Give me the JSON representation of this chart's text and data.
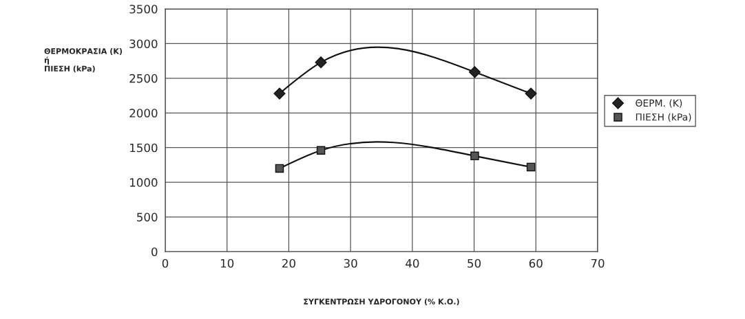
{
  "chart_data": {
    "type": "line",
    "xlabel": "ΣΥΓΚΕΝΤΡΩΣΗ ΥΔΡΟΓΟΝΟΥ (% Κ.Ο.)",
    "ylabel": "ΘΕΡΜΟΚΡΑΣΙΑ (K)\nή\nΠΙΕΣΗ (kPa)",
    "x": [
      18.5,
      25.2,
      50.1,
      59.2
    ],
    "series": [
      {
        "name": "ΘΕΡΜ. (K)",
        "color": "#222222",
        "marker": "diamond",
        "values": [
          2280,
          2730,
          2590,
          2280
        ]
      },
      {
        "name": "ΠΙΕΣΗ (kPa)",
        "color": "#555555",
        "marker": "square",
        "values": [
          1200,
          1460,
          1380,
          1220
        ]
      }
    ],
    "xlim": [
      0,
      70
    ],
    "xticks": [
      0,
      10,
      20,
      30,
      40,
      50,
      60,
      70
    ],
    "ylim": [
      0,
      3500
    ],
    "yticks": [
      0,
      500,
      1000,
      1500,
      2000,
      2500,
      3000,
      3500
    ],
    "grid": true,
    "legend": "right",
    "line_style": "solid"
  }
}
